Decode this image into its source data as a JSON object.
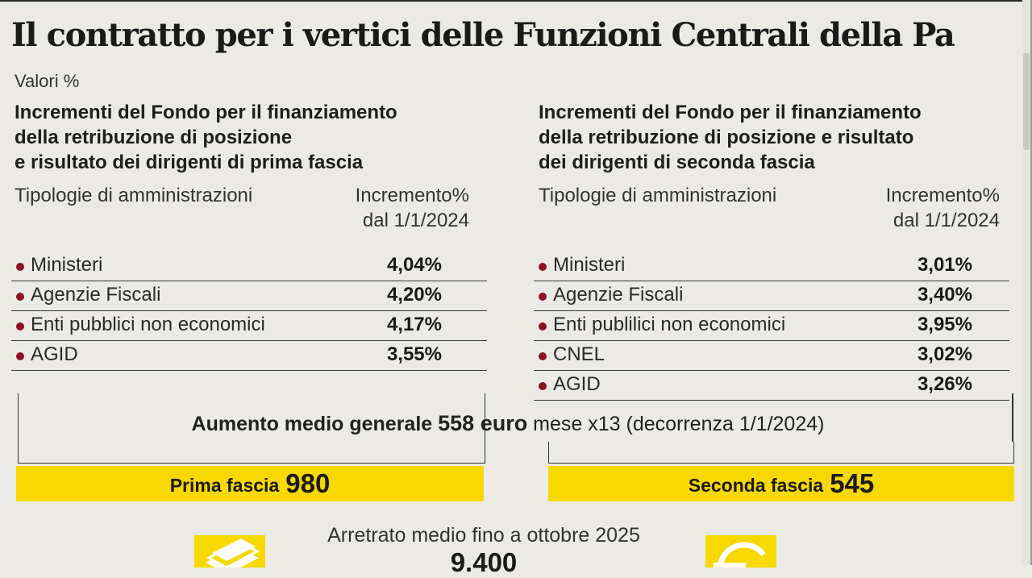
{
  "title": "Il contratto per i vertici delle Funzioni Centrali della Pa",
  "units": "Valori %",
  "left_panel": {
    "title": "Incrementi del Fondo per il finanziamento\ndella retribuzione di posizione\ne risultato dei dirigenti di prima fascia",
    "col1": "Tipologie di amministrazioni",
    "col2": "Incremento%\ndal 1/1/2024",
    "rows": [
      {
        "label": "Ministeri",
        "value": "4,04%"
      },
      {
        "label": "Agenzie Fiscali",
        "value": "4,20%"
      },
      {
        "label": "Enti pubblici non economici",
        "value": "4,17%"
      },
      {
        "label": "AGID",
        "value": "3,55%"
      }
    ]
  },
  "right_panel": {
    "title": "Incrementi del Fondo per il finanziamento\ndella retribuzione di posizione e risultato\ndei dirigenti di seconda fascia",
    "col1": "Tipologie di amministrazioni",
    "col2": "Incremento%\ndal 1/1/2024",
    "rows": [
      {
        "label": "Ministeri",
        "value": "3,01%"
      },
      {
        "label": "Agenzie Fiscali",
        "value": "3,40%"
      },
      {
        "label": "Enti publilici non economici",
        "value": "3,95%"
      },
      {
        "label": "CNEL",
        "value": "3,02%"
      },
      {
        "label": "AGID",
        "value": "3,26%"
      }
    ]
  },
  "average": {
    "prefix": "Aumento medio generale",
    "amount": "558 euro",
    "suffix": "mese x13 (decorrenza 1/1/2024)"
  },
  "bands": {
    "first_label": "Prima fascia",
    "first_value": "980",
    "second_label": "Seconda fascia",
    "second_value": "545"
  },
  "arrears": {
    "label": "Arretrato medio fino a ottobre 2025",
    "value": "9.400"
  },
  "icons": {
    "left": "banknotes-icon",
    "right": "euro-icon"
  },
  "colors": {
    "accent_yellow": "#f7d800",
    "bullet": "#8c1222"
  }
}
